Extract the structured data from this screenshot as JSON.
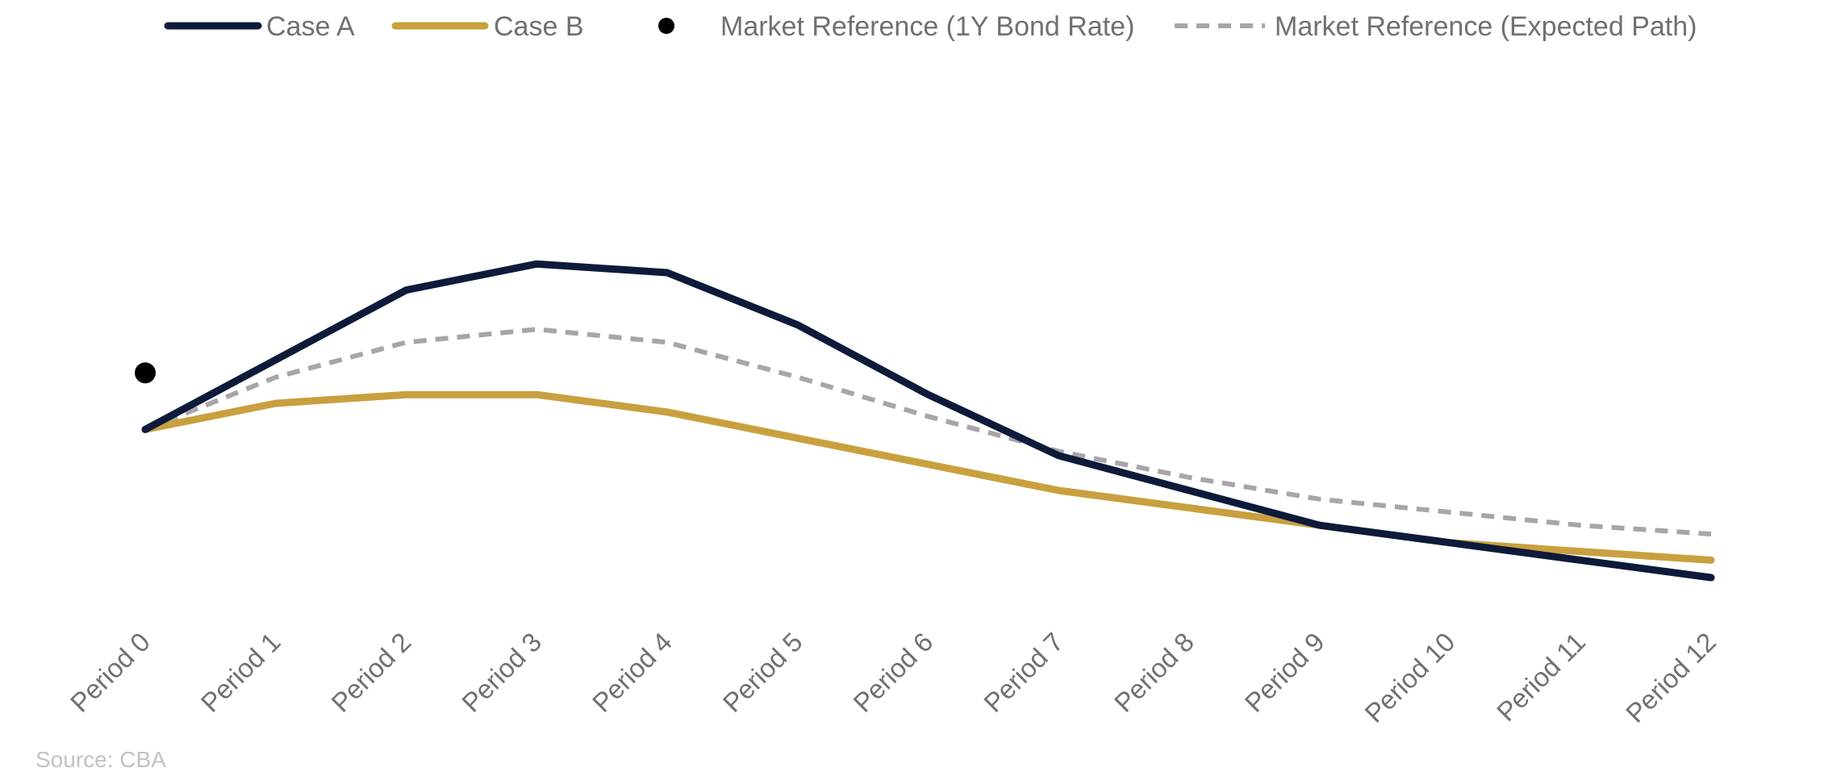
{
  "source": "Source: CBA",
  "colors": {
    "case_a": "#0d1a3a",
    "case_b": "#c9a03f",
    "market_point": "#000000",
    "market_path": "#a9a4aa",
    "tick_text": "#707070",
    "source_text": "#c2c2c2"
  },
  "legend": {
    "case_a": "Case A",
    "case_b": "Case B",
    "market_point": "Market Reference (1Y Bond Rate)",
    "market_path": "Market Reference (Expected Path)"
  },
  "chart_data": {
    "type": "line",
    "title": "",
    "xlabel": "",
    "ylabel": "",
    "legend_position": "top",
    "grid": false,
    "y_axis_visible": false,
    "ylim": [
      0,
      10
    ],
    "categories": [
      "Period 0",
      "Period 1",
      "Period 2",
      "Period 3",
      "Period 4",
      "Period 5",
      "Period 6",
      "Period 7",
      "Period 8",
      "Period 9",
      "Period 10",
      "Period 11",
      "Period 12"
    ],
    "series": [
      {
        "key": "case_a",
        "name": "Case A",
        "style": "solid",
        "values": [
          4.4,
          6.0,
          7.6,
          8.2,
          8.0,
          6.8,
          5.2,
          3.8,
          3.0,
          2.2,
          1.8,
          1.4,
          1.0
        ]
      },
      {
        "key": "case_b",
        "name": "Case B",
        "style": "solid",
        "values": [
          4.4,
          5.0,
          5.2,
          5.2,
          4.8,
          4.2,
          3.6,
          3.0,
          2.6,
          2.2,
          1.8,
          1.6,
          1.4
        ]
      },
      {
        "key": "market_path",
        "name": "Market Reference (Expected Path)",
        "style": "dashed",
        "values": [
          4.4,
          5.6,
          6.4,
          6.7,
          6.4,
          5.6,
          4.7,
          3.9,
          3.3,
          2.8,
          2.5,
          2.2,
          2.0
        ]
      },
      {
        "key": "market_point",
        "name": "Market Reference (1Y Bond Rate)",
        "style": "point",
        "points": [
          {
            "x": "Period 0",
            "y": 5.7
          }
        ]
      }
    ]
  }
}
